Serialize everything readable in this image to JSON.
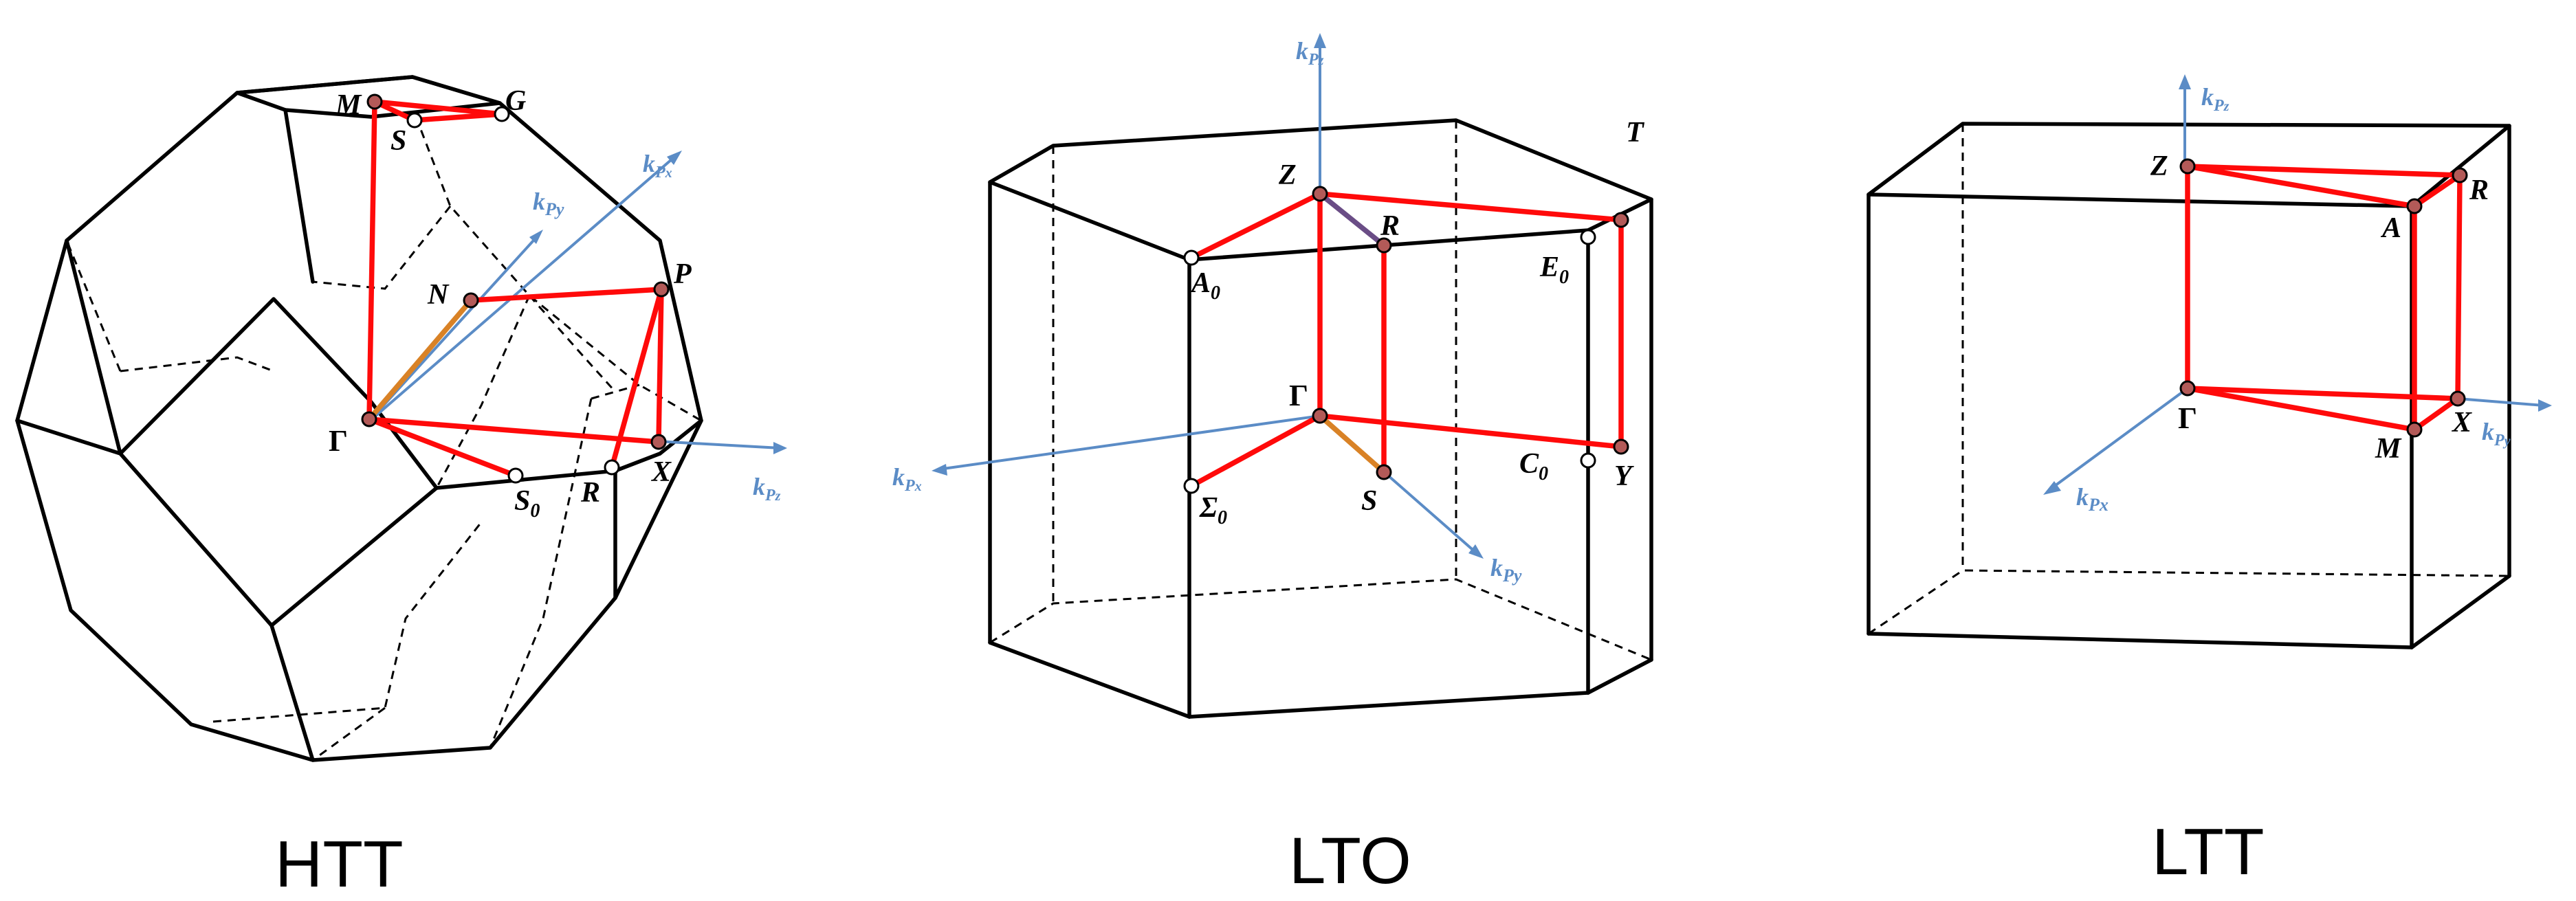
{
  "panels": [
    {
      "caption": "HTT",
      "points": {
        "M": "M",
        "S": "S",
        "G": "G",
        "N": "N",
        "P": "P",
        "Gamma": "Γ",
        "S0": "S",
        "S0_sub": "0",
        "R": "R",
        "X": "X"
      },
      "axes": {
        "y_small": "k",
        "y_small_sub": "Py",
        "a1": "k",
        "a1_sub": "P",
        "a1_sub2": "x",
        "a2": "k",
        "a2_sub": "P",
        "a2_sub2": "z"
      }
    },
    {
      "caption": "LTO",
      "points": {
        "Z": "Z",
        "R": "R",
        "T": "T",
        "A0": "A",
        "A0_sub": "0",
        "E0": "E",
        "E0_sub": "0",
        "Gamma": "Γ",
        "Sigma0": "Σ",
        "Sigma0_sub": "0",
        "S": "S",
        "C0": "C",
        "C0_sub": "0",
        "Y": "Y"
      },
      "axes": {
        "z": "k",
        "z_sub": "P",
        "z_sub2": "z",
        "x": "k",
        "x_sub": "P",
        "x_sub2": "x",
        "y": "k",
        "y_sub": "Py"
      }
    },
    {
      "caption": "LTT",
      "points": {
        "Z": "Z",
        "R": "R",
        "A": "A",
        "Gamma": "Γ",
        "M": "M",
        "X": "X"
      },
      "axes": {
        "z": "k",
        "z_sub": "P",
        "z_sub2": "z",
        "y": "k",
        "y_sub": "P",
        "y_sub2": "y",
        "x": "k",
        "x_sub": "Px"
      }
    }
  ],
  "colors": {
    "path": "#ff0a0a",
    "axis": "#5b8cc6",
    "point_fill": "#b35a58",
    "gamma_s_segment": "#d98226",
    "z_r_segment": "#6a4d86"
  }
}
